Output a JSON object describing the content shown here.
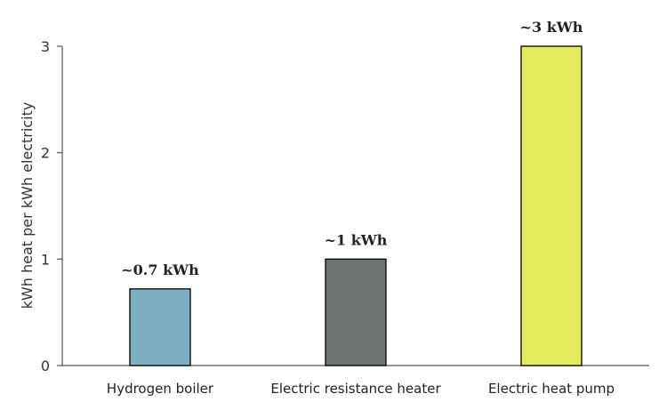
{
  "chart_data": {
    "type": "bar",
    "ylabel": "kWh heat per kWh electricity",
    "ylim": [
      0,
      3
    ],
    "yticks": [
      0,
      1,
      2,
      3
    ],
    "grid": false,
    "categories": [
      "Hydrogen boiler",
      "Electric resistance heater",
      "Electric heat pump"
    ],
    "values": [
      0.72,
      1.0,
      3.0
    ],
    "data_labels": [
      "~0.7 kWh",
      "~1 kWh",
      "~3 kWh"
    ],
    "colors": [
      "#7fb0c2",
      "#6f736f",
      "#e2ec5e"
    ]
  }
}
